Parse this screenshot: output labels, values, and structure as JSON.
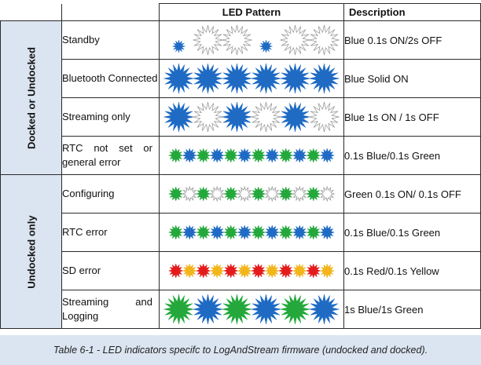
{
  "table": {
    "headers": {
      "pattern": "LED Pattern",
      "description": "Description"
    },
    "groups": [
      {
        "label": "Docked or Undocked"
      },
      {
        "label": "Undocked only"
      }
    ],
    "rows": [
      {
        "name": "Standby",
        "description": "Blue 0.1s ON/2s OFF",
        "stars": [
          "blue-s",
          "white-l",
          "white-l",
          "blue-s",
          "white-l",
          "white-l"
        ]
      },
      {
        "name": "Bluetooth Connected",
        "description": "Blue Solid ON",
        "stars": [
          "blue-l",
          "blue-l",
          "blue-l",
          "blue-l",
          "blue-l",
          "blue-l"
        ]
      },
      {
        "name": "Streaming only",
        "description": "Blue 1s ON / 1s OFF",
        "stars": [
          "blue-l",
          "white-l",
          "blue-l",
          "white-l",
          "blue-l",
          "white-l"
        ]
      },
      {
        "name": "RTC not set or general error",
        "description": "0.1s Blue/0.1s Green",
        "stars": [
          "green",
          "blue",
          "green",
          "blue",
          "green",
          "blue",
          "green",
          "blue",
          "green",
          "blue",
          "green",
          "blue"
        ]
      },
      {
        "name": "Configuring",
        "description": "Green 0.1s ON/ 0.1s OFF",
        "stars": [
          "green",
          "white",
          "green",
          "white",
          "green",
          "white",
          "green",
          "white",
          "green",
          "white",
          "green",
          "white"
        ]
      },
      {
        "name": "RTC error",
        "description": "0.1s Blue/0.1s Green",
        "stars": [
          "green",
          "blue",
          "green",
          "blue",
          "green",
          "blue",
          "green",
          "blue",
          "green",
          "blue",
          "green",
          "blue"
        ]
      },
      {
        "name": "SD error",
        "description": "0.1s Red/0.1s Yellow",
        "stars": [
          "red",
          "yellow",
          "red",
          "yellow",
          "red",
          "yellow",
          "red",
          "yellow",
          "red",
          "yellow",
          "red",
          "yellow"
        ]
      },
      {
        "name": "Streaming and Logging",
        "description": "1s Blue/1s Green",
        "stars": [
          "green-l",
          "blue-l",
          "green-l",
          "blue-l",
          "green-l",
          "blue-l"
        ]
      }
    ]
  },
  "caption": "Table 6-1 - LED indicators specifc to LogAndStream firmware (undocked and docked).",
  "colors": {
    "blue": "#1f6bc4",
    "green": "#24a83c",
    "red": "#e41b1b",
    "yellow": "#f2b51c",
    "white": "#ffffff",
    "group_bg": "#dbe5f1"
  }
}
